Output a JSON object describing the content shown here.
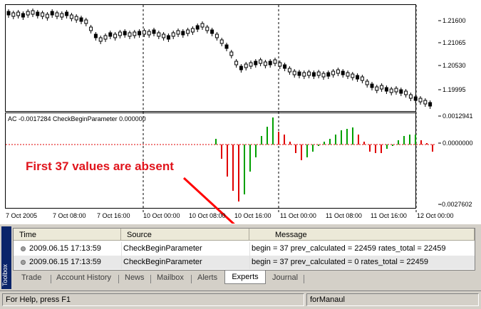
{
  "price_axis": [
    "1.21600",
    "1.21065",
    "1.20530",
    "1.19995"
  ],
  "indicator_axis": [
    "0.0012941",
    "0.0000000",
    "-0.0027602"
  ],
  "indicator_title": "AC -0.0017284 CheckBeginParameter 0.000000",
  "time_axis": [
    "7 Oct 2005",
    "7 Oct 08:00",
    "7 Oct 16:00",
    "10 Oct 00:00",
    "10 Oct 08:00",
    "10 Oct 16:00",
    "11 Oct 00:00",
    "11 Oct 08:00",
    "11 Oct 16:00",
    "12 Oct 00:00"
  ],
  "annotation": "First 37 values are absent",
  "toolbox_label": "Toolbox",
  "log": {
    "columns": [
      "Time",
      "Source",
      "Message"
    ],
    "rows": [
      {
        "time": "2009.06.15 17:13:59",
        "source": "CheckBeginParameter",
        "message": "begin = 37   prev_calculated = 22459   rates_total = 22459"
      },
      {
        "time": "2009.06.15 17:13:59",
        "source": "CheckBeginParameter",
        "message": "begin = 37   prev_calculated = 0   rates_total = 22459"
      }
    ]
  },
  "tabs": [
    "Trade",
    "Account History",
    "News",
    "Mailbox",
    "Alerts",
    "Experts",
    "Journal"
  ],
  "active_tab": "Experts",
  "status": {
    "help": "For Help, press F1",
    "profile": "forManaul"
  },
  "colors": {
    "bar_up": "#00a000",
    "bar_down": "#e00000",
    "annotation": "#e0141c",
    "arrow": "#ff0000"
  }
}
